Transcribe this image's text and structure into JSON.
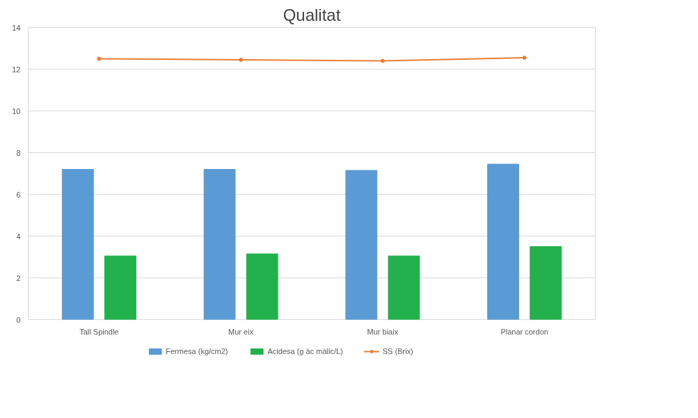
{
  "chart_data": {
    "type": "bar",
    "title": "Qualitat",
    "categories": [
      "Tall Spindle",
      "Mur eix",
      "Mur biaix",
      "Planar cordon"
    ],
    "series": [
      {
        "name": "Fermesa (kg/cm2)",
        "color": "#5b9bd5",
        "values": [
          7.2,
          7.2,
          7.15,
          7.45
        ]
      },
      {
        "name": "Acidesa (g àc màlic/L)",
        "color": "#22b14c",
        "values": [
          3.05,
          3.15,
          3.05,
          3.5
        ]
      },
      {
        "name": "SS (Brix)",
        "type": "line",
        "color": "#ed7d31",
        "values": [
          12.5,
          12.45,
          12.4,
          12.55
        ],
        "marker": "circle"
      }
    ],
    "ylim": [
      0,
      14
    ],
    "yticks": [
      0,
      2,
      4,
      6,
      8,
      10,
      12,
      14
    ],
    "grid": "y",
    "legend": "bottom"
  }
}
